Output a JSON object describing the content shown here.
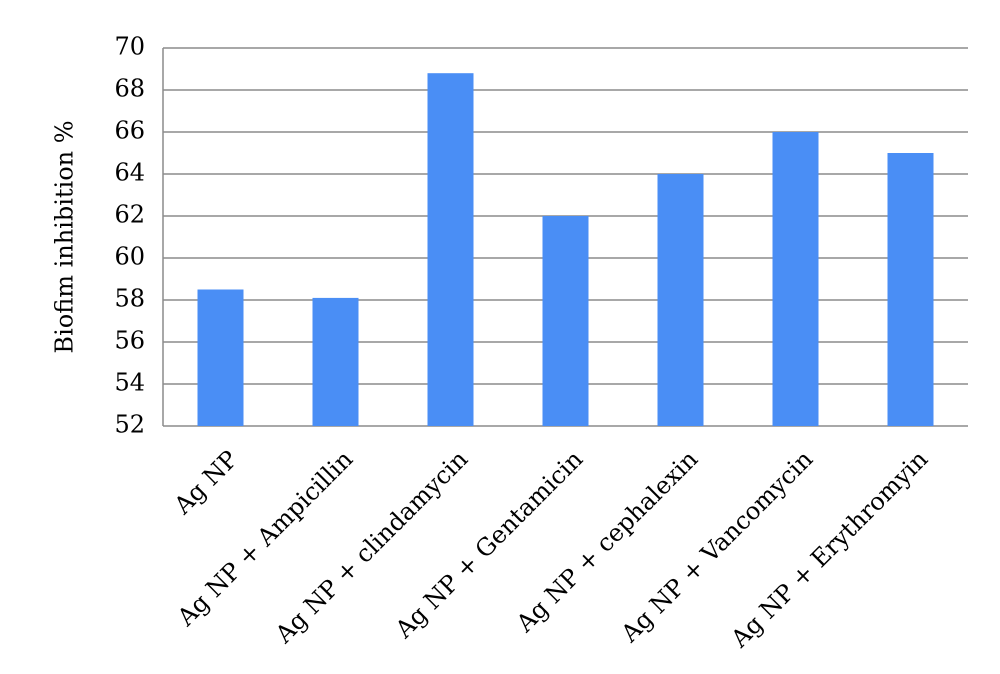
{
  "chart_data": {
    "type": "bar",
    "y_label": "Biofim inhibition %",
    "categories": [
      "Ag NP",
      "Ag NP + Ampicillin",
      "Ag NP + clindamycin",
      "Ag NP + Gentamicin",
      "Ag NP + cephalexin",
      "Ag NP + Vancomycin",
      "Ag NP + Erythromyin"
    ],
    "values": [
      58.5,
      58.1,
      68.8,
      62,
      64,
      66,
      65
    ],
    "color": "#4a8ef5",
    "ylim": [
      52,
      70
    ],
    "yticks": [
      52,
      54,
      56,
      58,
      60,
      62,
      64,
      66,
      68,
      70
    ],
    "grid": true
  }
}
